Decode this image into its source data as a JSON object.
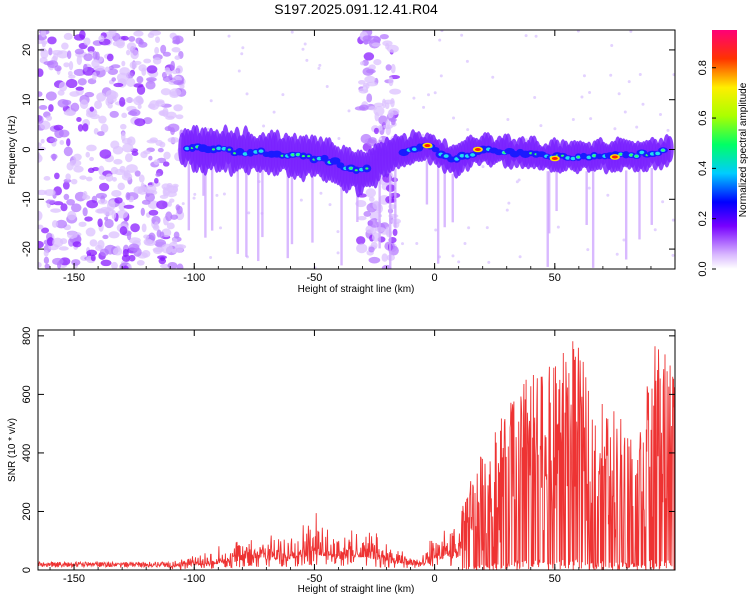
{
  "title": "S197.2025.091.12.41.R04",
  "chart_data": [
    {
      "type": "heatmap",
      "xlabel": "Height of straight line (km)",
      "ylabel": "Frequency (Hz)",
      "xlim": [
        -165,
        100
      ],
      "ylim": [
        -24,
        24
      ],
      "x_ticks": [
        -150,
        -100,
        -50,
        0,
        50
      ],
      "y_ticks": [
        -20,
        -10,
        0,
        10,
        20
      ],
      "colorbar": {
        "label": "Normalized spectral amplitude",
        "range": [
          0,
          0.95
        ],
        "ticks": [
          0.0,
          0.2,
          0.4,
          0.6,
          0.8
        ],
        "tick_labels": [
          "0.0",
          "0.2",
          "0.4",
          "0.6",
          "0.8"
        ]
      },
      "features": {
        "noise_band_1_km": [
          -165,
          -105
        ],
        "noise_band_2_km": [
          -31,
          -16
        ],
        "signal_ridge": [
          {
            "x": -105,
            "freq": 0.5
          },
          {
            "x": -80,
            "freq": -0.5
          },
          {
            "x": -60,
            "freq": -1.0
          },
          {
            "x": -45,
            "freq": -2.0
          },
          {
            "x": -32,
            "freq": -4.5
          },
          {
            "x": -15,
            "freq": -0.5
          },
          {
            "x": -3,
            "freq": 0.8
          },
          {
            "x": 8,
            "freq": -2.0
          },
          {
            "x": 20,
            "freq": 0.0
          },
          {
            "x": 50,
            "freq": -1.5
          },
          {
            "x": 80,
            "freq": -1.2
          },
          {
            "x": 95,
            "freq": -0.5
          }
        ],
        "peak_markers_red": [
          {
            "x": -3,
            "freq": 0.8
          },
          {
            "x": 18,
            "freq": 0.0
          },
          {
            "x": 50,
            "freq": -1.8
          },
          {
            "x": 75,
            "freq": -1.5
          }
        ]
      }
    },
    {
      "type": "line",
      "xlabel": "Height of straight line (km)",
      "ylabel": "SNR (10 * v/v)",
      "xlim": [
        -165,
        100
      ],
      "ylim": [
        0,
        820
      ],
      "x_ticks": [
        -150,
        -100,
        -50,
        0,
        50
      ],
      "y_ticks": [
        0,
        200,
        400,
        600,
        800
      ],
      "series": [
        {
          "color": "#ee3333",
          "envelope": [
            {
              "x": -165,
              "y": 30
            },
            {
              "x": -110,
              "y": 30
            },
            {
              "x": -100,
              "y": 60
            },
            {
              "x": -85,
              "y": 100
            },
            {
              "x": -75,
              "y": 150
            },
            {
              "x": -65,
              "y": 120
            },
            {
              "x": -50,
              "y": 210
            },
            {
              "x": -40,
              "y": 150
            },
            {
              "x": -30,
              "y": 170
            },
            {
              "x": -15,
              "y": 80
            },
            {
              "x": -5,
              "y": 50
            },
            {
              "x": 0,
              "y": 150
            },
            {
              "x": 10,
              "y": 160
            },
            {
              "x": 15,
              "y": 330
            },
            {
              "x": 25,
              "y": 480
            },
            {
              "x": 35,
              "y": 650
            },
            {
              "x": 45,
              "y": 690
            },
            {
              "x": 50,
              "y": 700
            },
            {
              "x": 58,
              "y": 820
            },
            {
              "x": 65,
              "y": 620
            },
            {
              "x": 75,
              "y": 560
            },
            {
              "x": 85,
              "y": 480
            },
            {
              "x": 92,
              "y": 790
            },
            {
              "x": 100,
              "y": 700
            }
          ]
        }
      ]
    }
  ]
}
